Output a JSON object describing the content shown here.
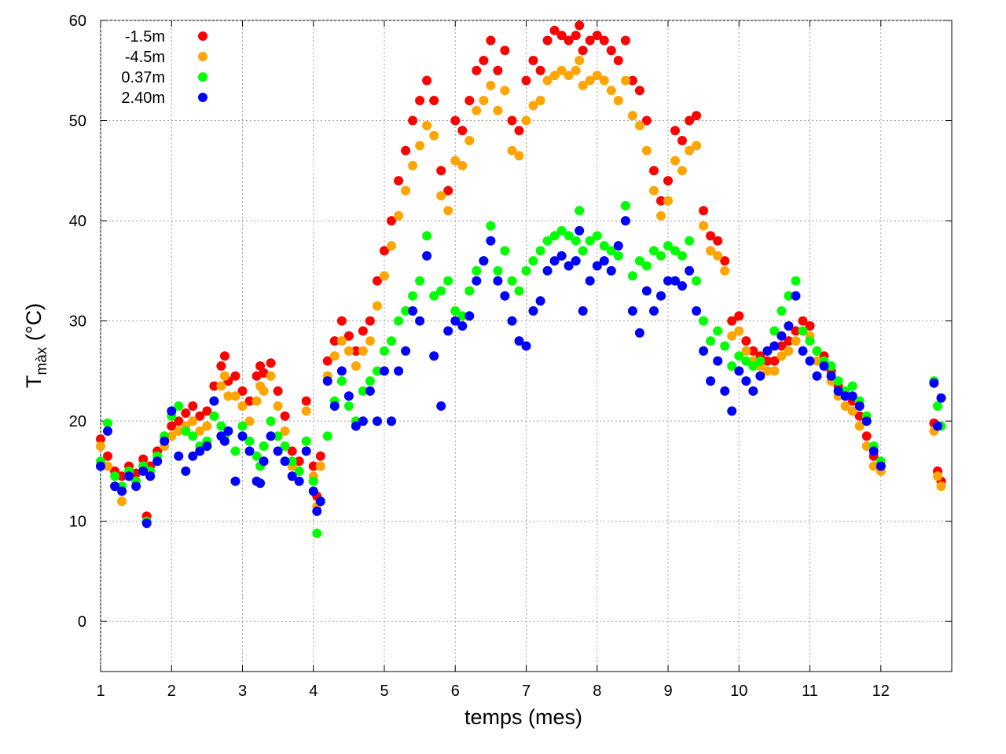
{
  "chart_data": {
    "type": "scatter",
    "xlabel": "temps (mes)",
    "ylabel_main": "T",
    "ylabel_sub": "màx",
    "ylabel_unit": " (°C)",
    "xlim": [
      1,
      13
    ],
    "ylim": [
      -5,
      60
    ],
    "xticks": [
      1,
      2,
      3,
      4,
      5,
      6,
      7,
      8,
      9,
      10,
      11,
      12
    ],
    "yticks": [
      0,
      10,
      20,
      30,
      40,
      50,
      60
    ],
    "grid": true,
    "legend_position": "top-left",
    "series": [
      {
        "name": "-1.5m",
        "color": "#ff0000",
        "x": [
          1.0,
          1.1,
          1.2,
          1.3,
          1.4,
          1.5,
          1.6,
          1.65,
          1.7,
          1.8,
          1.9,
          2.0,
          2.1,
          2.2,
          2.3,
          2.4,
          2.5,
          2.6,
          2.7,
          2.75,
          2.8,
          2.9,
          3.0,
          3.1,
          3.2,
          3.25,
          3.3,
          3.4,
          3.5,
          3.6,
          3.7,
          3.8,
          3.9,
          4.0,
          4.05,
          4.1,
          4.2,
          4.3,
          4.4,
          4.5,
          4.6,
          4.7,
          4.8,
          4.9,
          5.0,
          5.1,
          5.2,
          5.3,
          5.4,
          5.5,
          5.6,
          5.7,
          5.8,
          5.9,
          6.0,
          6.1,
          6.2,
          6.3,
          6.4,
          6.5,
          6.6,
          6.7,
          6.8,
          6.9,
          7.0,
          7.1,
          7.2,
          7.3,
          7.4,
          7.5,
          7.6,
          7.7,
          7.75,
          7.8,
          7.9,
          8.0,
          8.1,
          8.2,
          8.3,
          8.4,
          8.5,
          8.6,
          8.7,
          8.8,
          8.9,
          9.0,
          9.1,
          9.2,
          9.3,
          9.4,
          9.5,
          9.6,
          9.7,
          9.8,
          9.9,
          10.0,
          10.1,
          10.2,
          10.3,
          10.4,
          10.5,
          10.6,
          10.7,
          10.8,
          10.9,
          11.0,
          11.1,
          11.2,
          11.3,
          11.4,
          11.5,
          11.6,
          11.7,
          11.8,
          11.9,
          12.0,
          12.75,
          12.8,
          12.85
        ],
        "y": [
          18.2,
          16.5,
          15.0,
          14.5,
          15.5,
          14.8,
          16.2,
          10.5,
          15.5,
          17.0,
          18.5,
          19.5,
          20.0,
          20.8,
          21.5,
          20.5,
          21.0,
          23.5,
          25.5,
          26.5,
          24.0,
          24.5,
          23.0,
          22.0,
          24.5,
          25.5,
          24.8,
          25.8,
          23.0,
          20.5,
          17.0,
          16.0,
          22.0,
          15.5,
          12.5,
          16.5,
          26.0,
          28.0,
          30.0,
          28.5,
          27.0,
          29.0,
          30.0,
          34.0,
          37.0,
          40.0,
          44.0,
          47.0,
          50.0,
          52.0,
          54.0,
          52.0,
          45.0,
          43.0,
          50.0,
          49.0,
          52.0,
          55.0,
          56.0,
          58.0,
          55.0,
          57.0,
          50.0,
          49.0,
          54.0,
          56.0,
          55.0,
          58.0,
          59.0,
          58.5,
          58.0,
          58.5,
          59.5,
          57.0,
          58.0,
          58.5,
          58.0,
          57.0,
          56.0,
          58.0,
          54.0,
          53.0,
          50.0,
          45.0,
          42.0,
          44.0,
          49.0,
          48.0,
          50.0,
          50.5,
          41.0,
          38.5,
          38.0,
          36.0,
          30.0,
          30.5,
          28.0,
          27.0,
          26.5,
          26.0,
          26.0,
          27.5,
          28.0,
          29.0,
          30.0,
          29.5,
          27.0,
          26.5,
          25.0,
          23.5,
          22.5,
          22.0,
          20.5,
          18.5,
          16.5,
          15.5,
          19.8,
          15.0,
          14.0
        ]
      },
      {
        "name": "-4.5m",
        "color": "#ffa500",
        "x": [
          1.0,
          1.1,
          1.2,
          1.3,
          1.4,
          1.5,
          1.6,
          1.65,
          1.7,
          1.8,
          1.9,
          2.0,
          2.1,
          2.2,
          2.3,
          2.4,
          2.5,
          2.6,
          2.7,
          2.75,
          2.8,
          2.9,
          3.0,
          3.1,
          3.2,
          3.25,
          3.3,
          3.4,
          3.5,
          3.6,
          3.7,
          3.8,
          3.9,
          4.0,
          4.05,
          4.1,
          4.2,
          4.3,
          4.4,
          4.5,
          4.6,
          4.7,
          4.8,
          4.9,
          5.0,
          5.1,
          5.2,
          5.3,
          5.4,
          5.5,
          5.6,
          5.7,
          5.8,
          5.9,
          6.0,
          6.1,
          6.2,
          6.3,
          6.4,
          6.5,
          6.6,
          6.7,
          6.8,
          6.9,
          7.0,
          7.1,
          7.2,
          7.3,
          7.4,
          7.5,
          7.6,
          7.7,
          7.75,
          7.8,
          7.9,
          8.0,
          8.1,
          8.2,
          8.3,
          8.4,
          8.5,
          8.6,
          8.7,
          8.8,
          8.9,
          9.0,
          9.1,
          9.2,
          9.3,
          9.4,
          9.5,
          9.6,
          9.7,
          9.8,
          9.9,
          10.0,
          10.1,
          10.2,
          10.3,
          10.4,
          10.5,
          10.6,
          10.7,
          10.8,
          10.9,
          11.0,
          11.1,
          11.2,
          11.3,
          11.4,
          11.5,
          11.6,
          11.7,
          11.8,
          11.9,
          12.0,
          12.75,
          12.8,
          12.85
        ],
        "y": [
          17.5,
          15.5,
          13.5,
          12.0,
          14.5,
          14.0,
          15.5,
          10.0,
          14.5,
          16.0,
          17.5,
          18.5,
          19.0,
          19.5,
          20.0,
          19.0,
          19.5,
          22.0,
          23.5,
          24.5,
          22.5,
          22.5,
          21.5,
          20.0,
          22.0,
          23.5,
          23.0,
          24.5,
          21.5,
          19.0,
          15.5,
          15.0,
          21.0,
          14.5,
          11.5,
          15.5,
          24.5,
          26.5,
          28.0,
          27.0,
          25.5,
          27.0,
          28.0,
          31.5,
          34.5,
          37.5,
          40.5,
          43.0,
          45.5,
          47.5,
          49.5,
          48.5,
          42.5,
          41.0,
          46.0,
          45.5,
          48.0,
          51.0,
          52.0,
          53.5,
          51.0,
          53.0,
          47.0,
          46.5,
          50.0,
          51.5,
          52.0,
          54.0,
          54.5,
          55.0,
          54.5,
          55.0,
          56.0,
          53.5,
          54.0,
          54.5,
          54.0,
          53.0,
          52.0,
          54.0,
          50.5,
          49.5,
          47.0,
          43.0,
          40.5,
          42.0,
          46.0,
          45.0,
          47.0,
          47.5,
          39.5,
          37.0,
          36.5,
          35.0,
          28.5,
          29.0,
          27.0,
          26.0,
          25.5,
          25.0,
          25.0,
          26.5,
          27.0,
          28.0,
          29.0,
          28.5,
          26.0,
          25.5,
          24.0,
          22.5,
          21.5,
          21.0,
          19.5,
          17.5,
          15.5,
          15.0,
          19.0,
          14.5,
          13.5
        ]
      },
      {
        "name": "0.37m",
        "color": "#00ff00",
        "x": [
          1.0,
          1.1,
          1.2,
          1.3,
          1.4,
          1.5,
          1.6,
          1.65,
          1.7,
          1.8,
          1.9,
          2.0,
          2.1,
          2.2,
          2.3,
          2.4,
          2.5,
          2.6,
          2.7,
          2.75,
          2.8,
          2.9,
          3.0,
          3.1,
          3.2,
          3.25,
          3.3,
          3.4,
          3.5,
          3.6,
          3.7,
          3.8,
          3.9,
          4.0,
          4.05,
          4.1,
          4.2,
          4.3,
          4.4,
          4.5,
          4.6,
          4.7,
          4.8,
          4.9,
          5.0,
          5.1,
          5.2,
          5.3,
          5.4,
          5.5,
          5.6,
          5.7,
          5.8,
          5.9,
          6.0,
          6.1,
          6.2,
          6.3,
          6.4,
          6.5,
          6.6,
          6.7,
          6.8,
          6.9,
          7.0,
          7.1,
          7.2,
          7.3,
          7.4,
          7.5,
          7.6,
          7.7,
          7.75,
          7.8,
          7.9,
          8.0,
          8.1,
          8.2,
          8.3,
          8.4,
          8.5,
          8.6,
          8.7,
          8.8,
          8.9,
          9.0,
          9.1,
          9.2,
          9.3,
          9.4,
          9.5,
          9.6,
          9.7,
          9.8,
          9.9,
          10.0,
          10.1,
          10.2,
          10.3,
          10.4,
          10.5,
          10.6,
          10.7,
          10.8,
          10.9,
          11.0,
          11.1,
          11.2,
          11.3,
          11.4,
          11.5,
          11.6,
          11.7,
          11.8,
          11.9,
          12.0,
          12.75,
          12.8,
          12.85
        ],
        "y": [
          16.0,
          19.8,
          14.5,
          13.5,
          15.0,
          14.0,
          15.5,
          10.0,
          15.0,
          16.5,
          18.5,
          20.5,
          21.5,
          19.0,
          18.5,
          17.5,
          18.0,
          20.5,
          19.5,
          18.5,
          19.0,
          17.0,
          19.5,
          18.0,
          16.5,
          15.5,
          17.5,
          20.0,
          18.5,
          17.5,
          16.0,
          15.0,
          18.0,
          14.0,
          8.8,
          12.0,
          18.5,
          22.0,
          24.0,
          21.5,
          20.0,
          23.0,
          24.0,
          25.0,
          27.0,
          28.0,
          30.0,
          31.0,
          32.5,
          34.0,
          38.5,
          32.5,
          33.0,
          34.0,
          31.0,
          30.5,
          33.0,
          35.0,
          36.0,
          39.5,
          35.0,
          37.0,
          34.0,
          33.0,
          35.0,
          36.0,
          37.0,
          38.0,
          38.5,
          39.0,
          38.5,
          38.0,
          41.0,
          37.0,
          38.0,
          38.5,
          37.5,
          37.0,
          36.5,
          41.5,
          34.5,
          36.0,
          35.5,
          37.0,
          36.5,
          37.5,
          37.0,
          36.5,
          38.0,
          34.0,
          30.0,
          28.0,
          29.0,
          27.5,
          25.5,
          26.5,
          26.0,
          25.5,
          26.0,
          27.0,
          29.0,
          31.0,
          32.5,
          34.0,
          29.0,
          28.0,
          27.0,
          26.0,
          25.5,
          24.0,
          23.0,
          23.5,
          22.0,
          20.5,
          17.5,
          16.0,
          24.0,
          21.5,
          19.5
        ]
      },
      {
        "name": "2.40m",
        "color": "#0000ff",
        "x": [
          1.0,
          1.1,
          1.2,
          1.3,
          1.4,
          1.5,
          1.6,
          1.65,
          1.7,
          1.8,
          1.9,
          2.0,
          2.1,
          2.2,
          2.3,
          2.4,
          2.5,
          2.6,
          2.7,
          2.75,
          2.8,
          2.9,
          3.0,
          3.1,
          3.2,
          3.25,
          3.3,
          3.4,
          3.5,
          3.6,
          3.7,
          3.8,
          3.9,
          4.0,
          4.05,
          4.1,
          4.2,
          4.3,
          4.4,
          4.5,
          4.6,
          4.7,
          4.8,
          4.9,
          5.0,
          5.1,
          5.2,
          5.3,
          5.4,
          5.5,
          5.6,
          5.7,
          5.8,
          5.9,
          6.0,
          6.1,
          6.2,
          6.3,
          6.4,
          6.5,
          6.6,
          6.7,
          6.8,
          6.9,
          7.0,
          7.1,
          7.2,
          7.3,
          7.4,
          7.5,
          7.6,
          7.7,
          7.75,
          7.8,
          7.9,
          8.0,
          8.1,
          8.2,
          8.3,
          8.4,
          8.5,
          8.6,
          8.7,
          8.8,
          8.9,
          9.0,
          9.1,
          9.2,
          9.3,
          9.4,
          9.5,
          9.6,
          9.7,
          9.8,
          9.9,
          10.0,
          10.1,
          10.2,
          10.3,
          10.4,
          10.5,
          10.6,
          10.7,
          10.8,
          10.9,
          11.0,
          11.1,
          11.2,
          11.3,
          11.4,
          11.5,
          11.6,
          11.7,
          11.8,
          11.9,
          12.0,
          12.75,
          12.8,
          12.85
        ],
        "y": [
          15.5,
          19.0,
          13.5,
          13.0,
          14.5,
          13.5,
          15.0,
          9.8,
          14.5,
          16.0,
          18.0,
          21.0,
          16.5,
          15.0,
          16.5,
          17.0,
          17.5,
          22.0,
          18.5,
          18.0,
          19.0,
          14.0,
          18.5,
          17.0,
          14.0,
          13.8,
          16.0,
          18.5,
          17.0,
          16.0,
          14.5,
          14.0,
          17.0,
          13.0,
          11.0,
          12.0,
          24.0,
          21.5,
          25.0,
          22.5,
          19.5,
          20.0,
          23.0,
          20.0,
          25.0,
          20.0,
          25.0,
          27.0,
          31.0,
          30.0,
          36.5,
          26.5,
          21.5,
          29.0,
          30.0,
          29.5,
          30.5,
          34.0,
          36.0,
          38.0,
          34.0,
          32.5,
          30.0,
          28.0,
          27.5,
          31.0,
          32.0,
          35.0,
          36.0,
          36.5,
          35.5,
          36.0,
          39.0,
          31.0,
          34.0,
          35.5,
          36.0,
          35.0,
          37.5,
          40.0,
          31.0,
          28.8,
          33.0,
          31.0,
          32.5,
          34.0,
          34.0,
          33.5,
          35.0,
          31.0,
          27.0,
          24.0,
          26.0,
          23.0,
          21.0,
          25.0,
          24.0,
          23.0,
          24.5,
          27.0,
          27.5,
          28.5,
          29.5,
          32.5,
          27.0,
          26.0,
          24.5,
          25.5,
          24.5,
          23.0,
          22.5,
          22.5,
          21.5,
          20.0,
          17.0,
          15.5,
          23.8,
          19.5,
          22.3
        ]
      }
    ]
  }
}
